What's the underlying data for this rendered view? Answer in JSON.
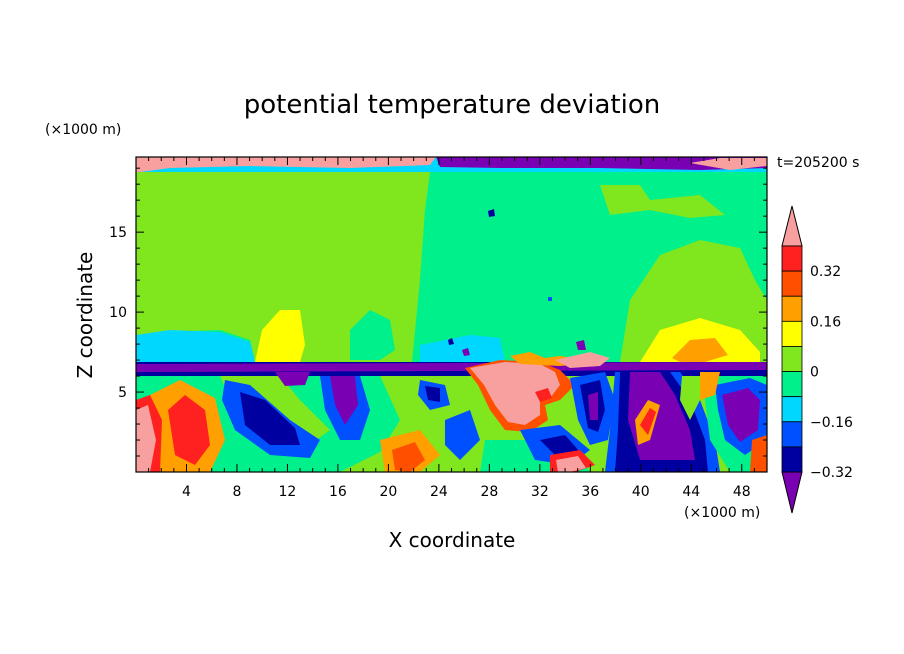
{
  "chart_data": {
    "type": "heatmap",
    "title": "potential temperature deviation",
    "xlabel": "X coordinate",
    "ylabel": "Z coordinate",
    "x_unit": "(×1000 m)",
    "y_unit": "(×1000 m)",
    "time_label": "t=205200 s",
    "xlim": [
      0,
      50
    ],
    "ylim": [
      0,
      19.7
    ],
    "x_ticks": [
      4,
      8,
      12,
      16,
      20,
      24,
      28,
      32,
      36,
      40,
      44,
      48
    ],
    "y_ticks": [
      5,
      10,
      15
    ],
    "colorbar": {
      "levels": [
        -0.4,
        -0.32,
        -0.24,
        -0.16,
        -0.08,
        0,
        0.08,
        0.16,
        0.24,
        0.32,
        0.4
      ],
      "labeled_levels": [
        0.32,
        0.16,
        0,
        -0.16,
        -0.32
      ],
      "tick_labels": [
        "0.32",
        "0.16",
        "0",
        "−0.16",
        "−0.32"
      ],
      "colors": [
        "#7a00b4",
        "#0000a0",
        "#0050ff",
        "#00d7ff",
        "#00f08c",
        "#80e61e",
        "#ffff00",
        "#ffa000",
        "#ff5000",
        "#ff2020",
        "#f8a0a0"
      ]
    }
  }
}
